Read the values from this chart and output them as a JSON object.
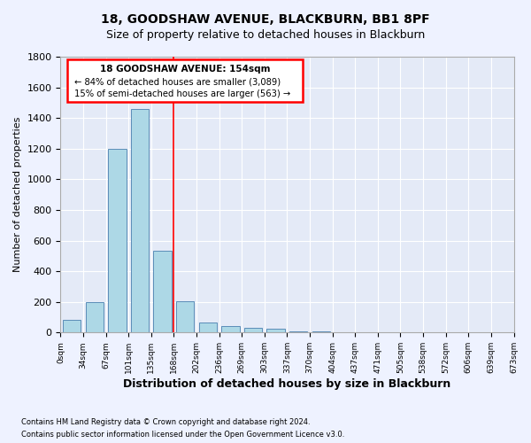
{
  "title": "18, GOODSHAW AVENUE, BLACKBURN, BB1 8PF",
  "subtitle": "Size of property relative to detached houses in Blackburn",
  "xlabel": "Distribution of detached houses by size in Blackburn",
  "ylabel": "Number of detached properties",
  "bar_values": [
    85,
    200,
    1200,
    1460,
    535,
    205,
    65,
    40,
    30,
    25,
    10,
    10,
    2,
    2,
    1,
    0,
    0,
    0,
    0,
    0
  ],
  "bar_labels": [
    "0sqm",
    "34sqm",
    "67sqm",
    "101sqm",
    "135sqm",
    "168sqm",
    "202sqm",
    "236sqm",
    "269sqm",
    "303sqm",
    "337sqm",
    "370sqm",
    "404sqm",
    "437sqm",
    "471sqm",
    "505sqm",
    "538sqm",
    "572sqm",
    "606sqm",
    "639sqm",
    "673sqm"
  ],
  "bar_color": "#add8e6",
  "bar_edge_color": "#5b8db8",
  "ylim": [
    0,
    1800
  ],
  "yticks": [
    0,
    200,
    400,
    600,
    800,
    1000,
    1200,
    1400,
    1600,
    1800
  ],
  "red_line_x": 4.5,
  "annotation_title": "18 GOODSHAW AVENUE: 154sqm",
  "annotation_line1": "← 84% of detached houses are smaller (3,089)",
  "annotation_line2": "15% of semi-detached houses are larger (563) →",
  "footer_line1": "Contains HM Land Registry data © Crown copyright and database right 2024.",
  "footer_line2": "Contains public sector information licensed under the Open Government Licence v3.0.",
  "background_color": "#eef2ff",
  "plot_bg_color": "#e4eaf7"
}
